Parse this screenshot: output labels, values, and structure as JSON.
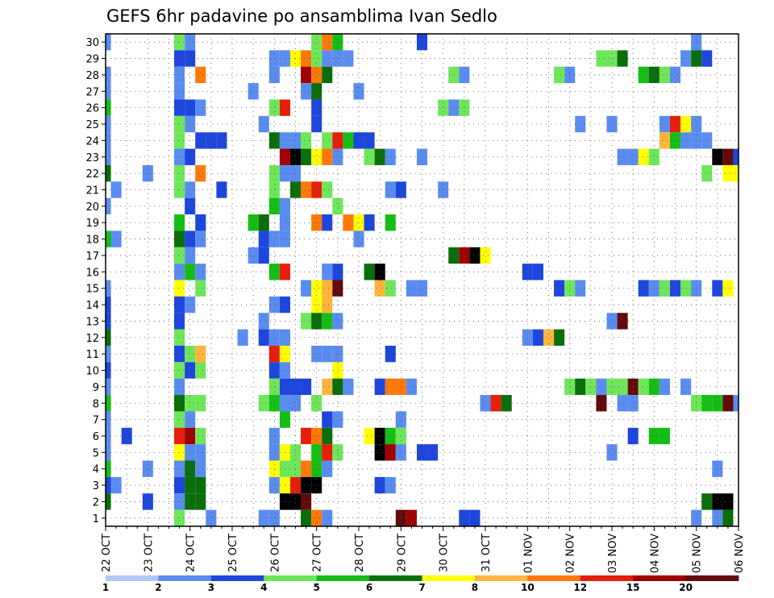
{
  "chart_data": {
    "type": "heatmap",
    "title": "GEFS 6hr padavine po ansamblima Ivan Sedlo",
    "xlabel": "",
    "ylabel": "",
    "x_tick_labels": [
      "22 OCT",
      "23 OCT",
      "24 OCT",
      "25 OCT",
      "26 OCT",
      "27 OCT",
      "28 OCT",
      "29 OCT",
      "30 OCT",
      "31 OCT",
      "01 NOV",
      "02 NOV",
      "03 NOV",
      "04 NOV",
      "05 NOV",
      "06 NOV"
    ],
    "y_tick_labels": [
      "1",
      "2",
      "3",
      "4",
      "5",
      "6",
      "7",
      "8",
      "9",
      "10",
      "11",
      "12",
      "13",
      "14",
      "15",
      "16",
      "17",
      "18",
      "19",
      "20",
      "21",
      "22",
      "23",
      "24",
      "25",
      "26",
      "27",
      "28",
      "29",
      "30"
    ],
    "time_steps_per_day": 4,
    "n_time_steps": 61,
    "n_members": 30,
    "grid": true,
    "colorbar": {
      "labels": [
        "1",
        "2",
        "3",
        "4",
        "5",
        "6",
        "7",
        "8",
        "10",
        "12",
        "15",
        "20"
      ],
      "colors": [
        "#b4c8f8",
        "#5a8cf0",
        "#1e46dc",
        "#6ee65a",
        "#14be14",
        "#0a6e0a",
        "#ffff00",
        "#ffb43c",
        "#ff780a",
        "#e61e0a",
        "#a00000",
        "#640a0a"
      ]
    },
    "cells": [
      [
        0,
        30,
        1
      ],
      [
        7,
        30,
        3
      ],
      [
        8,
        30,
        1
      ],
      [
        20,
        30,
        3
      ],
      [
        21,
        30,
        8
      ],
      [
        22,
        30,
        4
      ],
      [
        30,
        30,
        2
      ],
      [
        56,
        30,
        1
      ],
      [
        7,
        29,
        2
      ],
      [
        8,
        29,
        2
      ],
      [
        16,
        29,
        1
      ],
      [
        17,
        29,
        1
      ],
      [
        18,
        29,
        6
      ],
      [
        19,
        29,
        8
      ],
      [
        20,
        29,
        3
      ],
      [
        21,
        29,
        1
      ],
      [
        22,
        29,
        1
      ],
      [
        23,
        29,
        1
      ],
      [
        47,
        29,
        3
      ],
      [
        48,
        29,
        3
      ],
      [
        49,
        29,
        5
      ],
      [
        55,
        29,
        1
      ],
      [
        56,
        29,
        5
      ],
      [
        57,
        29,
        2
      ],
      [
        0,
        28,
        1
      ],
      [
        7,
        28,
        1
      ],
      [
        9,
        28,
        8
      ],
      [
        16,
        28,
        1
      ],
      [
        19,
        28,
        10
      ],
      [
        20,
        28,
        8
      ],
      [
        21,
        28,
        5
      ],
      [
        33,
        28,
        3
      ],
      [
        34,
        28,
        1
      ],
      [
        43,
        28,
        3
      ],
      [
        44,
        28,
        1
      ],
      [
        51,
        28,
        4
      ],
      [
        52,
        28,
        5
      ],
      [
        53,
        28,
        3
      ],
      [
        54,
        28,
        1
      ],
      [
        0,
        27,
        1
      ],
      [
        7,
        27,
        1
      ],
      [
        14,
        27,
        1
      ],
      [
        19,
        27,
        1
      ],
      [
        20,
        27,
        5
      ],
      [
        24,
        27,
        1
      ],
      [
        0,
        26,
        4
      ],
      [
        7,
        26,
        2
      ],
      [
        8,
        26,
        2
      ],
      [
        9,
        26,
        1
      ],
      [
        16,
        26,
        3
      ],
      [
        17,
        26,
        9
      ],
      [
        20,
        26,
        2
      ],
      [
        32,
        26,
        3
      ],
      [
        33,
        26,
        1
      ],
      [
        34,
        26,
        3
      ],
      [
        0,
        25,
        1
      ],
      [
        7,
        25,
        3
      ],
      [
        8,
        25,
        1
      ],
      [
        15,
        25,
        1
      ],
      [
        20,
        25,
        2
      ],
      [
        45,
        25,
        1
      ],
      [
        48,
        25,
        1
      ],
      [
        53,
        25,
        1
      ],
      [
        54,
        25,
        9
      ],
      [
        55,
        25,
        6
      ],
      [
        56,
        25,
        1
      ],
      [
        0,
        24,
        1
      ],
      [
        7,
        24,
        3
      ],
      [
        9,
        24,
        2
      ],
      [
        10,
        24,
        2
      ],
      [
        11,
        24,
        2
      ],
      [
        16,
        24,
        5
      ],
      [
        17,
        24,
        1
      ],
      [
        18,
        24,
        1
      ],
      [
        19,
        24,
        3
      ],
      [
        21,
        24,
        3
      ],
      [
        22,
        24,
        9
      ],
      [
        23,
        24,
        4
      ],
      [
        24,
        24,
        2
      ],
      [
        25,
        24,
        2
      ],
      [
        53,
        24,
        7
      ],
      [
        54,
        24,
        4
      ],
      [
        55,
        24,
        1
      ],
      [
        56,
        24,
        1
      ],
      [
        57,
        24,
        1
      ],
      [
        0,
        23,
        1
      ],
      [
        7,
        23,
        1
      ],
      [
        8,
        23,
        2
      ],
      [
        17,
        23,
        10
      ],
      [
        18,
        23,
        12
      ],
      [
        19,
        23,
        5
      ],
      [
        20,
        23,
        6
      ],
      [
        21,
        23,
        8
      ],
      [
        22,
        23,
        1
      ],
      [
        25,
        23,
        3
      ],
      [
        26,
        23,
        5
      ],
      [
        27,
        23,
        1
      ],
      [
        30,
        23,
        1
      ],
      [
        49,
        23,
        1
      ],
      [
        50,
        23,
        1
      ],
      [
        51,
        23,
        6
      ],
      [
        52,
        23,
        3
      ],
      [
        58,
        23,
        12
      ],
      [
        59,
        23,
        11
      ],
      [
        60,
        23,
        2
      ],
      [
        0,
        22,
        5
      ],
      [
        4,
        22,
        1
      ],
      [
        7,
        22,
        3
      ],
      [
        9,
        22,
        8
      ],
      [
        16,
        22,
        3
      ],
      [
        17,
        22,
        1
      ],
      [
        18,
        22,
        1
      ],
      [
        57,
        22,
        3
      ],
      [
        59,
        22,
        6
      ],
      [
        60,
        22,
        6
      ],
      [
        1,
        21,
        1
      ],
      [
        7,
        21,
        3
      ],
      [
        8,
        21,
        1
      ],
      [
        11,
        21,
        2
      ],
      [
        16,
        21,
        3
      ],
      [
        18,
        21,
        5
      ],
      [
        19,
        21,
        8
      ],
      [
        20,
        21,
        9
      ],
      [
        21,
        21,
        3
      ],
      [
        27,
        21,
        1
      ],
      [
        28,
        21,
        2
      ],
      [
        32,
        21,
        1
      ],
      [
        0,
        20,
        1
      ],
      [
        8,
        20,
        2
      ],
      [
        16,
        20,
        4
      ],
      [
        17,
        20,
        1
      ],
      [
        22,
        20,
        3
      ],
      [
        7,
        19,
        4
      ],
      [
        9,
        19,
        2
      ],
      [
        14,
        19,
        4
      ],
      [
        15,
        19,
        5
      ],
      [
        17,
        19,
        1
      ],
      [
        20,
        19,
        8
      ],
      [
        21,
        19,
        2
      ],
      [
        23,
        19,
        8
      ],
      [
        24,
        19,
        6
      ],
      [
        25,
        19,
        2
      ],
      [
        27,
        19,
        4
      ],
      [
        0,
        18,
        4
      ],
      [
        1,
        18,
        1
      ],
      [
        7,
        18,
        5
      ],
      [
        8,
        18,
        2
      ],
      [
        9,
        18,
        1
      ],
      [
        15,
        18,
        2
      ],
      [
        16,
        18,
        1
      ],
      [
        17,
        18,
        1
      ],
      [
        24,
        18,
        1
      ],
      [
        7,
        17,
        3
      ],
      [
        8,
        17,
        1
      ],
      [
        14,
        17,
        1
      ],
      [
        15,
        17,
        2
      ],
      [
        33,
        17,
        5
      ],
      [
        34,
        17,
        10
      ],
      [
        35,
        17,
        12
      ],
      [
        36,
        17,
        6
      ],
      [
        7,
        16,
        1
      ],
      [
        8,
        16,
        4
      ],
      [
        9,
        16,
        1
      ],
      [
        16,
        16,
        4
      ],
      [
        17,
        16,
        9
      ],
      [
        21,
        16,
        1
      ],
      [
        22,
        16,
        2
      ],
      [
        25,
        16,
        5
      ],
      [
        26,
        16,
        12
      ],
      [
        40,
        16,
        2
      ],
      [
        41,
        16,
        2
      ],
      [
        0,
        15,
        1
      ],
      [
        7,
        15,
        6
      ],
      [
        9,
        15,
        3
      ],
      [
        19,
        15,
        1
      ],
      [
        20,
        15,
        6
      ],
      [
        21,
        15,
        7
      ],
      [
        22,
        15,
        11
      ],
      [
        26,
        15,
        7
      ],
      [
        27,
        15,
        3
      ],
      [
        29,
        15,
        1
      ],
      [
        30,
        15,
        1
      ],
      [
        43,
        15,
        2
      ],
      [
        44,
        15,
        3
      ],
      [
        45,
        15,
        1
      ],
      [
        51,
        15,
        2
      ],
      [
        52,
        15,
        1
      ],
      [
        53,
        15,
        3
      ],
      [
        54,
        15,
        2
      ],
      [
        55,
        15,
        3
      ],
      [
        56,
        15,
        1
      ],
      [
        58,
        15,
        2
      ],
      [
        59,
        15,
        6
      ],
      [
        0,
        14,
        2
      ],
      [
        7,
        14,
        2
      ],
      [
        8,
        14,
        1
      ],
      [
        16,
        14,
        1
      ],
      [
        17,
        14,
        2
      ],
      [
        20,
        14,
        6
      ],
      [
        21,
        14,
        7
      ],
      [
        0,
        13,
        2
      ],
      [
        7,
        13,
        2
      ],
      [
        15,
        13,
        1
      ],
      [
        19,
        13,
        3
      ],
      [
        20,
        13,
        5
      ],
      [
        21,
        13,
        4
      ],
      [
        22,
        13,
        1
      ],
      [
        48,
        13,
        1
      ],
      [
        49,
        13,
        11
      ],
      [
        0,
        12,
        5
      ],
      [
        7,
        12,
        3
      ],
      [
        13,
        12,
        1
      ],
      [
        15,
        12,
        2
      ],
      [
        16,
        12,
        1
      ],
      [
        17,
        12,
        1
      ],
      [
        40,
        12,
        1
      ],
      [
        41,
        12,
        2
      ],
      [
        42,
        12,
        7
      ],
      [
        43,
        12,
        5
      ],
      [
        0,
        11,
        1
      ],
      [
        7,
        11,
        2
      ],
      [
        8,
        11,
        3
      ],
      [
        9,
        11,
        7
      ],
      [
        16,
        11,
        9
      ],
      [
        17,
        11,
        6
      ],
      [
        20,
        11,
        1
      ],
      [
        21,
        11,
        1
      ],
      [
        22,
        11,
        1
      ],
      [
        27,
        11,
        2
      ],
      [
        0,
        10,
        2
      ],
      [
        7,
        10,
        3
      ],
      [
        8,
        10,
        2
      ],
      [
        9,
        10,
        3
      ],
      [
        16,
        10,
        2
      ],
      [
        17,
        10,
        1
      ],
      [
        22,
        10,
        6
      ],
      [
        0,
        9,
        1
      ],
      [
        7,
        9,
        1
      ],
      [
        16,
        9,
        3
      ],
      [
        17,
        9,
        2
      ],
      [
        18,
        9,
        2
      ],
      [
        19,
        9,
        2
      ],
      [
        21,
        9,
        7
      ],
      [
        22,
        9,
        5
      ],
      [
        23,
        9,
        1
      ],
      [
        26,
        9,
        2
      ],
      [
        27,
        9,
        8
      ],
      [
        28,
        9,
        8
      ],
      [
        29,
        9,
        1
      ],
      [
        44,
        9,
        3
      ],
      [
        45,
        9,
        5
      ],
      [
        46,
        9,
        3
      ],
      [
        47,
        9,
        1
      ],
      [
        48,
        9,
        3
      ],
      [
        49,
        9,
        3
      ],
      [
        50,
        9,
        11
      ],
      [
        51,
        9,
        3
      ],
      [
        52,
        9,
        4
      ],
      [
        53,
        9,
        1
      ],
      [
        55,
        9,
        1
      ],
      [
        0,
        8,
        4
      ],
      [
        7,
        8,
        5
      ],
      [
        8,
        8,
        3
      ],
      [
        9,
        8,
        3
      ],
      [
        15,
        8,
        3
      ],
      [
        16,
        8,
        4
      ],
      [
        17,
        8,
        1
      ],
      [
        18,
        8,
        1
      ],
      [
        20,
        8,
        3
      ],
      [
        36,
        8,
        1
      ],
      [
        37,
        8,
        9
      ],
      [
        38,
        8,
        5
      ],
      [
        47,
        8,
        11
      ],
      [
        49,
        8,
        1
      ],
      [
        50,
        8,
        1
      ],
      [
        56,
        8,
        3
      ],
      [
        57,
        8,
        4
      ],
      [
        58,
        8,
        4
      ],
      [
        59,
        8,
        11
      ],
      [
        60,
        8,
        1
      ],
      [
        0,
        7,
        1
      ],
      [
        7,
        7,
        3
      ],
      [
        8,
        7,
        1
      ],
      [
        17,
        7,
        4
      ],
      [
        21,
        7,
        2
      ],
      [
        22,
        7,
        1
      ],
      [
        28,
        7,
        1
      ],
      [
        0,
        6,
        1
      ],
      [
        2,
        6,
        2
      ],
      [
        7,
        6,
        9
      ],
      [
        8,
        6,
        10
      ],
      [
        9,
        6,
        3
      ],
      [
        16,
        6,
        1
      ],
      [
        19,
        6,
        9
      ],
      [
        20,
        6,
        8
      ],
      [
        21,
        6,
        5
      ],
      [
        25,
        6,
        6
      ],
      [
        26,
        6,
        12
      ],
      [
        27,
        6,
        4
      ],
      [
        28,
        6,
        3
      ],
      [
        50,
        6,
        2
      ],
      [
        52,
        6,
        4
      ],
      [
        53,
        6,
        4
      ],
      [
        0,
        5,
        1
      ],
      [
        7,
        5,
        6
      ],
      [
        8,
        5,
        1
      ],
      [
        9,
        5,
        1
      ],
      [
        16,
        5,
        1
      ],
      [
        17,
        5,
        6
      ],
      [
        18,
        5,
        3
      ],
      [
        20,
        5,
        4
      ],
      [
        21,
        5,
        9
      ],
      [
        22,
        5,
        3
      ],
      [
        26,
        5,
        12
      ],
      [
        27,
        5,
        10
      ],
      [
        28,
        5,
        1
      ],
      [
        30,
        5,
        2
      ],
      [
        31,
        5,
        2
      ],
      [
        48,
        5,
        1
      ],
      [
        0,
        4,
        4
      ],
      [
        4,
        4,
        1
      ],
      [
        7,
        4,
        1
      ],
      [
        8,
        4,
        5
      ],
      [
        9,
        4,
        1
      ],
      [
        16,
        4,
        6
      ],
      [
        17,
        4,
        3
      ],
      [
        18,
        4,
        3
      ],
      [
        19,
        4,
        8
      ],
      [
        20,
        4,
        4
      ],
      [
        21,
        4,
        1
      ],
      [
        58,
        4,
        1
      ],
      [
        0,
        3,
        2
      ],
      [
        1,
        3,
        1
      ],
      [
        7,
        3,
        2
      ],
      [
        8,
        3,
        5
      ],
      [
        9,
        3,
        5
      ],
      [
        16,
        3,
        1
      ],
      [
        17,
        3,
        6
      ],
      [
        18,
        3,
        9
      ],
      [
        19,
        3,
        12
      ],
      [
        20,
        3,
        12
      ],
      [
        26,
        3,
        2
      ],
      [
        27,
        3,
        1
      ],
      [
        0,
        2,
        5
      ],
      [
        4,
        2,
        2
      ],
      [
        7,
        2,
        1
      ],
      [
        8,
        2,
        5
      ],
      [
        9,
        2,
        5
      ],
      [
        17,
        2,
        12
      ],
      [
        18,
        2,
        12
      ],
      [
        19,
        2,
        11
      ],
      [
        57,
        2,
        5
      ],
      [
        58,
        2,
        12
      ],
      [
        59,
        2,
        12
      ],
      [
        7,
        1,
        3
      ],
      [
        10,
        1,
        1
      ],
      [
        15,
        1,
        1
      ],
      [
        16,
        1,
        1
      ],
      [
        19,
        1,
        5
      ],
      [
        20,
        1,
        8
      ],
      [
        21,
        1,
        1
      ],
      [
        28,
        1,
        11
      ],
      [
        29,
        1,
        10
      ],
      [
        34,
        1,
        2
      ],
      [
        35,
        1,
        2
      ],
      [
        56,
        1,
        1
      ],
      [
        58,
        1,
        1
      ],
      [
        59,
        1,
        5
      ]
    ]
  }
}
